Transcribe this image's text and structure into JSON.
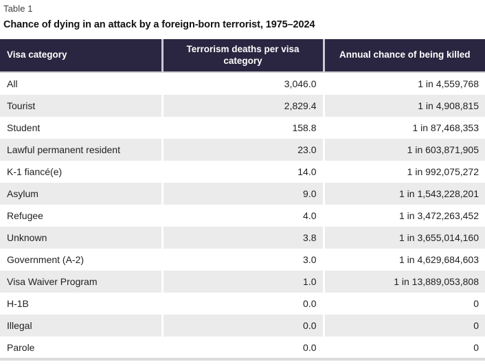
{
  "chart_data": {
    "type": "table",
    "table_label": "Table 1",
    "title": "Chance of dying in an attack by a foreign-born terrorist, 1975–2024",
    "columns": [
      "Visa category",
      "Terrorism deaths per visa category",
      "Annual chance of being killed"
    ],
    "rows": [
      [
        "All",
        "3,046.0",
        "1 in 4,559,768"
      ],
      [
        "Tourist",
        "2,829.4",
        "1 in 4,908,815"
      ],
      [
        "Student",
        "158.8",
        "1 in 87,468,353"
      ],
      [
        "Lawful permanent resident",
        "23.0",
        "1 in 603,871,905"
      ],
      [
        "K-1 fiancé(e)",
        "14.0",
        "1 in 992,075,272"
      ],
      [
        "Asylum",
        "9.0",
        "1 in 1,543,228,201"
      ],
      [
        "Refugee",
        "4.0",
        "1 in 3,472,263,452"
      ],
      [
        "Unknown",
        "3.8",
        "1 in 3,655,014,160"
      ],
      [
        "Government (A-2)",
        "3.0",
        "1 in 4,629,684,603"
      ],
      [
        "Visa Waiver Program",
        "1.0",
        "1 in 13,889,053,808"
      ],
      [
        "H-1B",
        "0.0",
        "0"
      ],
      [
        "Illegal",
        "0.0",
        "0"
      ],
      [
        "Parole",
        "0.0",
        "0"
      ]
    ],
    "layout": {
      "alternating_rows": "odd rows white, even rows shaded",
      "value_alignment": "right",
      "header_alignment": [
        "left",
        "center",
        "center"
      ]
    }
  },
  "colors": {
    "header_bg": "#2a2540",
    "header_text": "#ffffff",
    "header_separator": "#cbcad4",
    "alt_row_bg": "#ebebeb",
    "body_text": "#1f1f1f",
    "bottom_rule": "#dcdcdc"
  }
}
